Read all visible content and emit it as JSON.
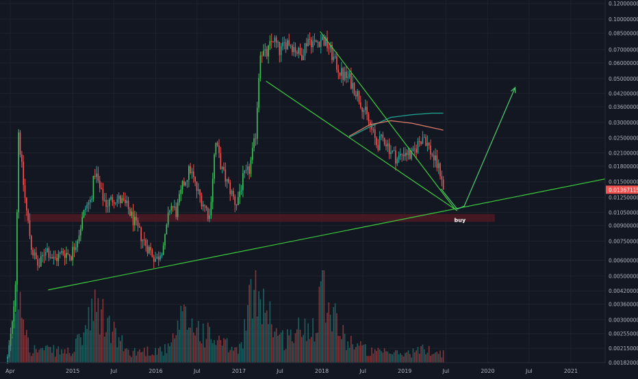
{
  "chart_data": {
    "type": "candlestick",
    "scale": "log",
    "y_axis_labels": [
      "0.12000000",
      "0.10000000",
      "0.08500000",
      "0.07000000",
      "0.06000000",
      "0.05000000",
      "0.04200000",
      "0.03600000",
      "0.03000000",
      "0.02500000",
      "0.02100000",
      "0.01800000",
      "0.01500000",
      "0.01250000",
      "0.01050000",
      "0.00900000",
      "0.00750000",
      "0.00600000",
      "0.00500000",
      "0.00420000",
      "0.00360000",
      "0.00300000",
      "0.00255000",
      "0.00215000",
      "0.00182000"
    ],
    "x_axis_labels": [
      "Apr",
      "2015",
      "Jul",
      "2016",
      "Jul",
      "2017",
      "Jul",
      "2018",
      "Jul",
      "2019",
      "Jul",
      "2020",
      "Jul",
      "2021"
    ],
    "last_price": "0.01367115",
    "ylim": [
      0.00182,
      0.125
    ],
    "xlim": [
      "2014-02-15",
      "2021-06-01"
    ],
    "grid": true,
    "colors": {
      "background": "#131722",
      "grid": "#1e222d",
      "up": "#26a69a",
      "down": "#ef5350",
      "up_bright": "#3fc05a",
      "trendline": "#3ed13e",
      "support_zone": "#4a1a24",
      "ma_teal": "#1f9e8c",
      "ma_salmon": "#d27763",
      "price_tag": "#ef5350",
      "axis_text": "#b2b5be"
    },
    "annotations": [
      {
        "type": "text",
        "text": "buy",
        "date": "2019-09-01",
        "price": 0.0097
      },
      {
        "type": "trendline",
        "from": {
          "date": "2014-09-15",
          "price": 0.00425
        },
        "to": {
          "date": "2021-06-01",
          "price": 0.0155
        }
      },
      {
        "type": "trendline",
        "from": {
          "date": "2017-05-01",
          "price": 0.0485
        },
        "to": {
          "date": "2019-08-20",
          "price": 0.0107
        }
      },
      {
        "type": "trendline",
        "from": {
          "date": "2017-12-25",
          "price": 0.0865
        },
        "to": {
          "date": "2019-08-10",
          "price": 0.0109
        }
      },
      {
        "type": "zone",
        "from_date": "2014-06-01",
        "to_date": "2020-02-01",
        "price_low": 0.0094,
        "price_high": 0.0103
      },
      {
        "type": "projection",
        "points": [
          {
            "date": "2019-06-10",
            "price": 0.0138
          },
          {
            "date": "2019-08-20",
            "price": 0.0109
          },
          {
            "date": "2019-09-20",
            "price": 0.0113
          },
          {
            "date": "2020-05-01",
            "price": 0.045
          }
        ]
      }
    ],
    "moving_averages": [
      {
        "color": "#1f9e8c",
        "points": [
          [
            "2018-05-01",
            0.0252
          ],
          [
            "2018-08-01",
            0.0285
          ],
          [
            "2018-11-01",
            0.0318
          ],
          [
            "2019-02-01",
            0.0328
          ],
          [
            "2019-05-01",
            0.0334
          ],
          [
            "2019-06-20",
            0.0334
          ]
        ]
      },
      {
        "color": "#d27763",
        "points": [
          [
            "2018-05-01",
            0.0255
          ],
          [
            "2018-08-01",
            0.0292
          ],
          [
            "2018-11-01",
            0.0306
          ],
          [
            "2019-02-01",
            0.0297
          ],
          [
            "2019-05-01",
            0.0282
          ],
          [
            "2019-06-20",
            0.0274
          ]
        ]
      }
    ],
    "price_anchors": [
      [
        "2014-03-20",
        0.0019
      ],
      [
        "2014-04-10",
        0.0028
      ],
      [
        "2014-04-25",
        0.005
      ],
      [
        "2014-05-08",
        0.027
      ],
      [
        "2014-05-25",
        0.016
      ],
      [
        "2014-06-10",
        0.011
      ],
      [
        "2014-07-05",
        0.0068
      ],
      [
        "2014-08-05",
        0.0055
      ],
      [
        "2014-09-05",
        0.007
      ],
      [
        "2014-10-10",
        0.006
      ],
      [
        "2014-11-20",
        0.0066
      ],
      [
        "2014-12-25",
        0.0064
      ],
      [
        "2015-01-25",
        0.008
      ],
      [
        "2015-02-25",
        0.011
      ],
      [
        "2015-03-20",
        0.012
      ],
      [
        "2015-04-10",
        0.017
      ],
      [
        "2015-05-05",
        0.013
      ],
      [
        "2015-06-01",
        0.0115
      ],
      [
        "2015-07-01",
        0.0125
      ],
      [
        "2015-08-01",
        0.012
      ],
      [
        "2015-09-01",
        0.011
      ],
      [
        "2015-10-15",
        0.0085
      ],
      [
        "2015-11-20",
        0.0072
      ],
      [
        "2016-01-05",
        0.006
      ],
      [
        "2016-02-10",
        0.0075
      ],
      [
        "2016-03-05",
        0.0115
      ],
      [
        "2016-04-01",
        0.0105
      ],
      [
        "2016-05-01",
        0.0145
      ],
      [
        "2016-06-01",
        0.0175
      ],
      [
        "2016-07-01",
        0.0135
      ],
      [
        "2016-08-01",
        0.0115
      ],
      [
        "2016-08-25",
        0.01
      ],
      [
        "2016-09-20",
        0.024
      ],
      [
        "2016-10-20",
        0.017
      ],
      [
        "2016-11-20",
        0.014
      ],
      [
        "2016-12-20",
        0.0115
      ],
      [
        "2017-01-20",
        0.0155
      ],
      [
        "2017-02-15",
        0.017
      ],
      [
        "2017-03-15",
        0.025
      ],
      [
        "2017-04-05",
        0.07
      ],
      [
        "2017-05-01",
        0.065
      ],
      [
        "2017-06-01",
        0.08
      ],
      [
        "2017-07-01",
        0.068
      ],
      [
        "2017-08-01",
        0.078
      ],
      [
        "2017-09-01",
        0.072
      ],
      [
        "2017-10-01",
        0.065
      ],
      [
        "2017-11-01",
        0.08
      ],
      [
        "2017-12-01",
        0.075
      ],
      [
        "2018-01-01",
        0.08
      ],
      [
        "2018-02-01",
        0.072
      ],
      [
        "2018-03-01",
        0.06
      ],
      [
        "2018-04-01",
        0.052
      ],
      [
        "2018-05-01",
        0.05
      ],
      [
        "2018-06-01",
        0.043
      ],
      [
        "2018-07-01",
        0.036
      ],
      [
        "2018-08-01",
        0.029
      ],
      [
        "2018-09-01",
        0.023
      ],
      [
        "2018-10-01",
        0.025
      ],
      [
        "2018-11-01",
        0.0215
      ],
      [
        "2018-12-01",
        0.0195
      ],
      [
        "2019-01-01",
        0.0215
      ],
      [
        "2019-02-01",
        0.02
      ],
      [
        "2019-03-01",
        0.0235
      ],
      [
        "2019-03-25",
        0.026
      ],
      [
        "2019-04-20",
        0.022
      ],
      [
        "2019-05-15",
        0.019
      ],
      [
        "2019-06-10",
        0.0165
      ],
      [
        "2019-06-25",
        0.01367
      ]
    ],
    "volume_anchors": [
      [
        "2014-03-20",
        0.02
      ],
      [
        "2014-05-08",
        0.9
      ],
      [
        "2014-07-01",
        0.15
      ],
      [
        "2015-01-01",
        0.12
      ],
      [
        "2015-04-15",
        0.6
      ],
      [
        "2015-09-01",
        0.12
      ],
      [
        "2016-03-01",
        0.15
      ],
      [
        "2016-05-01",
        0.5
      ],
      [
        "2016-09-20",
        0.25
      ],
      [
        "2017-01-01",
        0.12
      ],
      [
        "2017-03-20",
        0.95
      ],
      [
        "2017-07-01",
        0.25
      ],
      [
        "2017-12-01",
        0.45
      ],
      [
        "2018-01-01",
        1.0
      ],
      [
        "2018-04-01",
        0.3
      ],
      [
        "2018-08-01",
        0.12
      ],
      [
        "2019-01-01",
        0.1
      ],
      [
        "2019-04-01",
        0.15
      ],
      [
        "2019-06-25",
        0.1
      ]
    ]
  }
}
